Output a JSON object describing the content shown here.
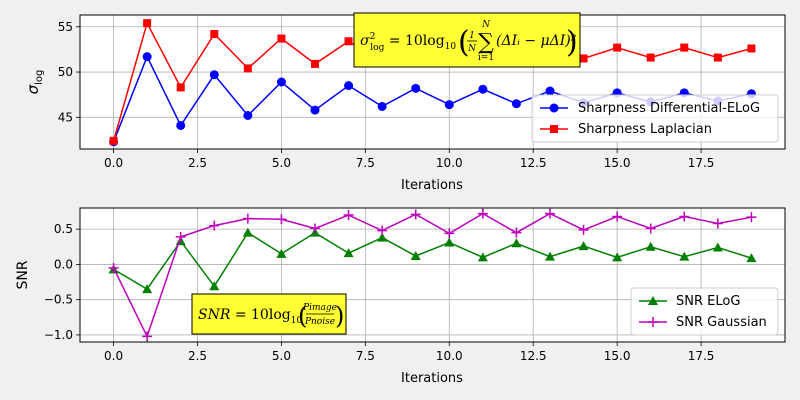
{
  "chart_data": [
    {
      "type": "line",
      "xlabel": "Iterations",
      "ylabel": "σ",
      "ylabel_sub": "log",
      "xlim": [
        -1,
        20
      ],
      "ylim": [
        41.5,
        56.3
      ],
      "xticks": [
        0.0,
        2.5,
        5.0,
        7.5,
        10.0,
        12.5,
        15.0,
        17.5
      ],
      "xtick_labels": [
        "0.0",
        "2.5",
        "5.0",
        "7.5",
        "10.0",
        "12.5",
        "15.0",
        "17.5"
      ],
      "yticks": [
        45,
        50,
        55
      ],
      "ytick_labels": [
        "45",
        "50",
        "55"
      ],
      "grid": true,
      "legend_position": "lower-right",
      "annotation": {
        "lhs": "σ²log = 10log",
        "base": "10",
        "frac_top": "1",
        "frac_bottom": "N",
        "sum_top": "N",
        "sum_bottom": "i=1",
        "body": "(ΔIᵢ − μΔI)²",
        "bg_color": "#ffff33"
      },
      "x": [
        0,
        1,
        2,
        3,
        4,
        5,
        6,
        7,
        8,
        9,
        10,
        11,
        12,
        13,
        14,
        15,
        16,
        17,
        18,
        19
      ],
      "series": [
        {
          "name": "Sharpness Differential-ELoG",
          "color": "#0000ff",
          "marker": "circle",
          "values": [
            42.3,
            51.7,
            44.1,
            49.7,
            45.2,
            48.9,
            45.8,
            48.5,
            46.2,
            48.2,
            46.4,
            48.1,
            46.5,
            47.9,
            46.6,
            47.7,
            46.7,
            47.7,
            46.8,
            47.6
          ]
        },
        {
          "name": "Sharpness Laplacian",
          "color": "#ff0000",
          "marker": "square",
          "values": [
            42.4,
            55.4,
            48.3,
            54.2,
            50.4,
            53.7,
            50.9,
            53.4,
            51.1,
            53.1,
            51.4,
            52.9,
            51.5,
            52.8,
            51.5,
            52.7,
            51.6,
            52.7,
            51.6,
            52.6
          ]
        }
      ]
    },
    {
      "type": "line",
      "xlabel": "Iterations",
      "ylabel": "SNR",
      "xlim": [
        -1,
        20
      ],
      "ylim": [
        -1.1,
        0.8
      ],
      "xticks": [
        0.0,
        2.5,
        5.0,
        7.5,
        10.0,
        12.5,
        15.0,
        17.5
      ],
      "xtick_labels": [
        "0.0",
        "2.5",
        "5.0",
        "7.5",
        "10.0",
        "12.5",
        "15.0",
        "17.5"
      ],
      "yticks": [
        -1.0,
        -0.5,
        0.0,
        0.5
      ],
      "ytick_labels": [
        "−1.0",
        "−0.5",
        "0.0",
        "0.5"
      ],
      "grid": true,
      "legend_position": "lower-right",
      "annotation": {
        "lhs": "SNR = 10log",
        "base": "10",
        "num": "Pimage",
        "den": "Pnoise",
        "bg_color": "#ffff33"
      },
      "x": [
        0,
        1,
        2,
        3,
        4,
        5,
        6,
        7,
        8,
        9,
        10,
        11,
        12,
        13,
        14,
        15,
        16,
        17,
        18,
        19
      ],
      "series": [
        {
          "name": "SNR ELoG",
          "color": "#008000",
          "marker": "triangle",
          "values": [
            -0.07,
            -0.35,
            0.33,
            -0.31,
            0.45,
            0.15,
            0.45,
            0.16,
            0.38,
            0.12,
            0.31,
            0.1,
            0.3,
            0.11,
            0.26,
            0.1,
            0.25,
            0.11,
            0.24,
            0.09
          ]
        },
        {
          "name": "SNR Gaussian",
          "color": "#bf00bf",
          "marker": "plus",
          "values": [
            -0.05,
            -1.02,
            0.39,
            0.55,
            0.65,
            0.64,
            0.51,
            0.7,
            0.48,
            0.71,
            0.44,
            0.72,
            0.45,
            0.72,
            0.49,
            0.68,
            0.51,
            0.68,
            0.58,
            0.67
          ]
        }
      ]
    }
  ]
}
